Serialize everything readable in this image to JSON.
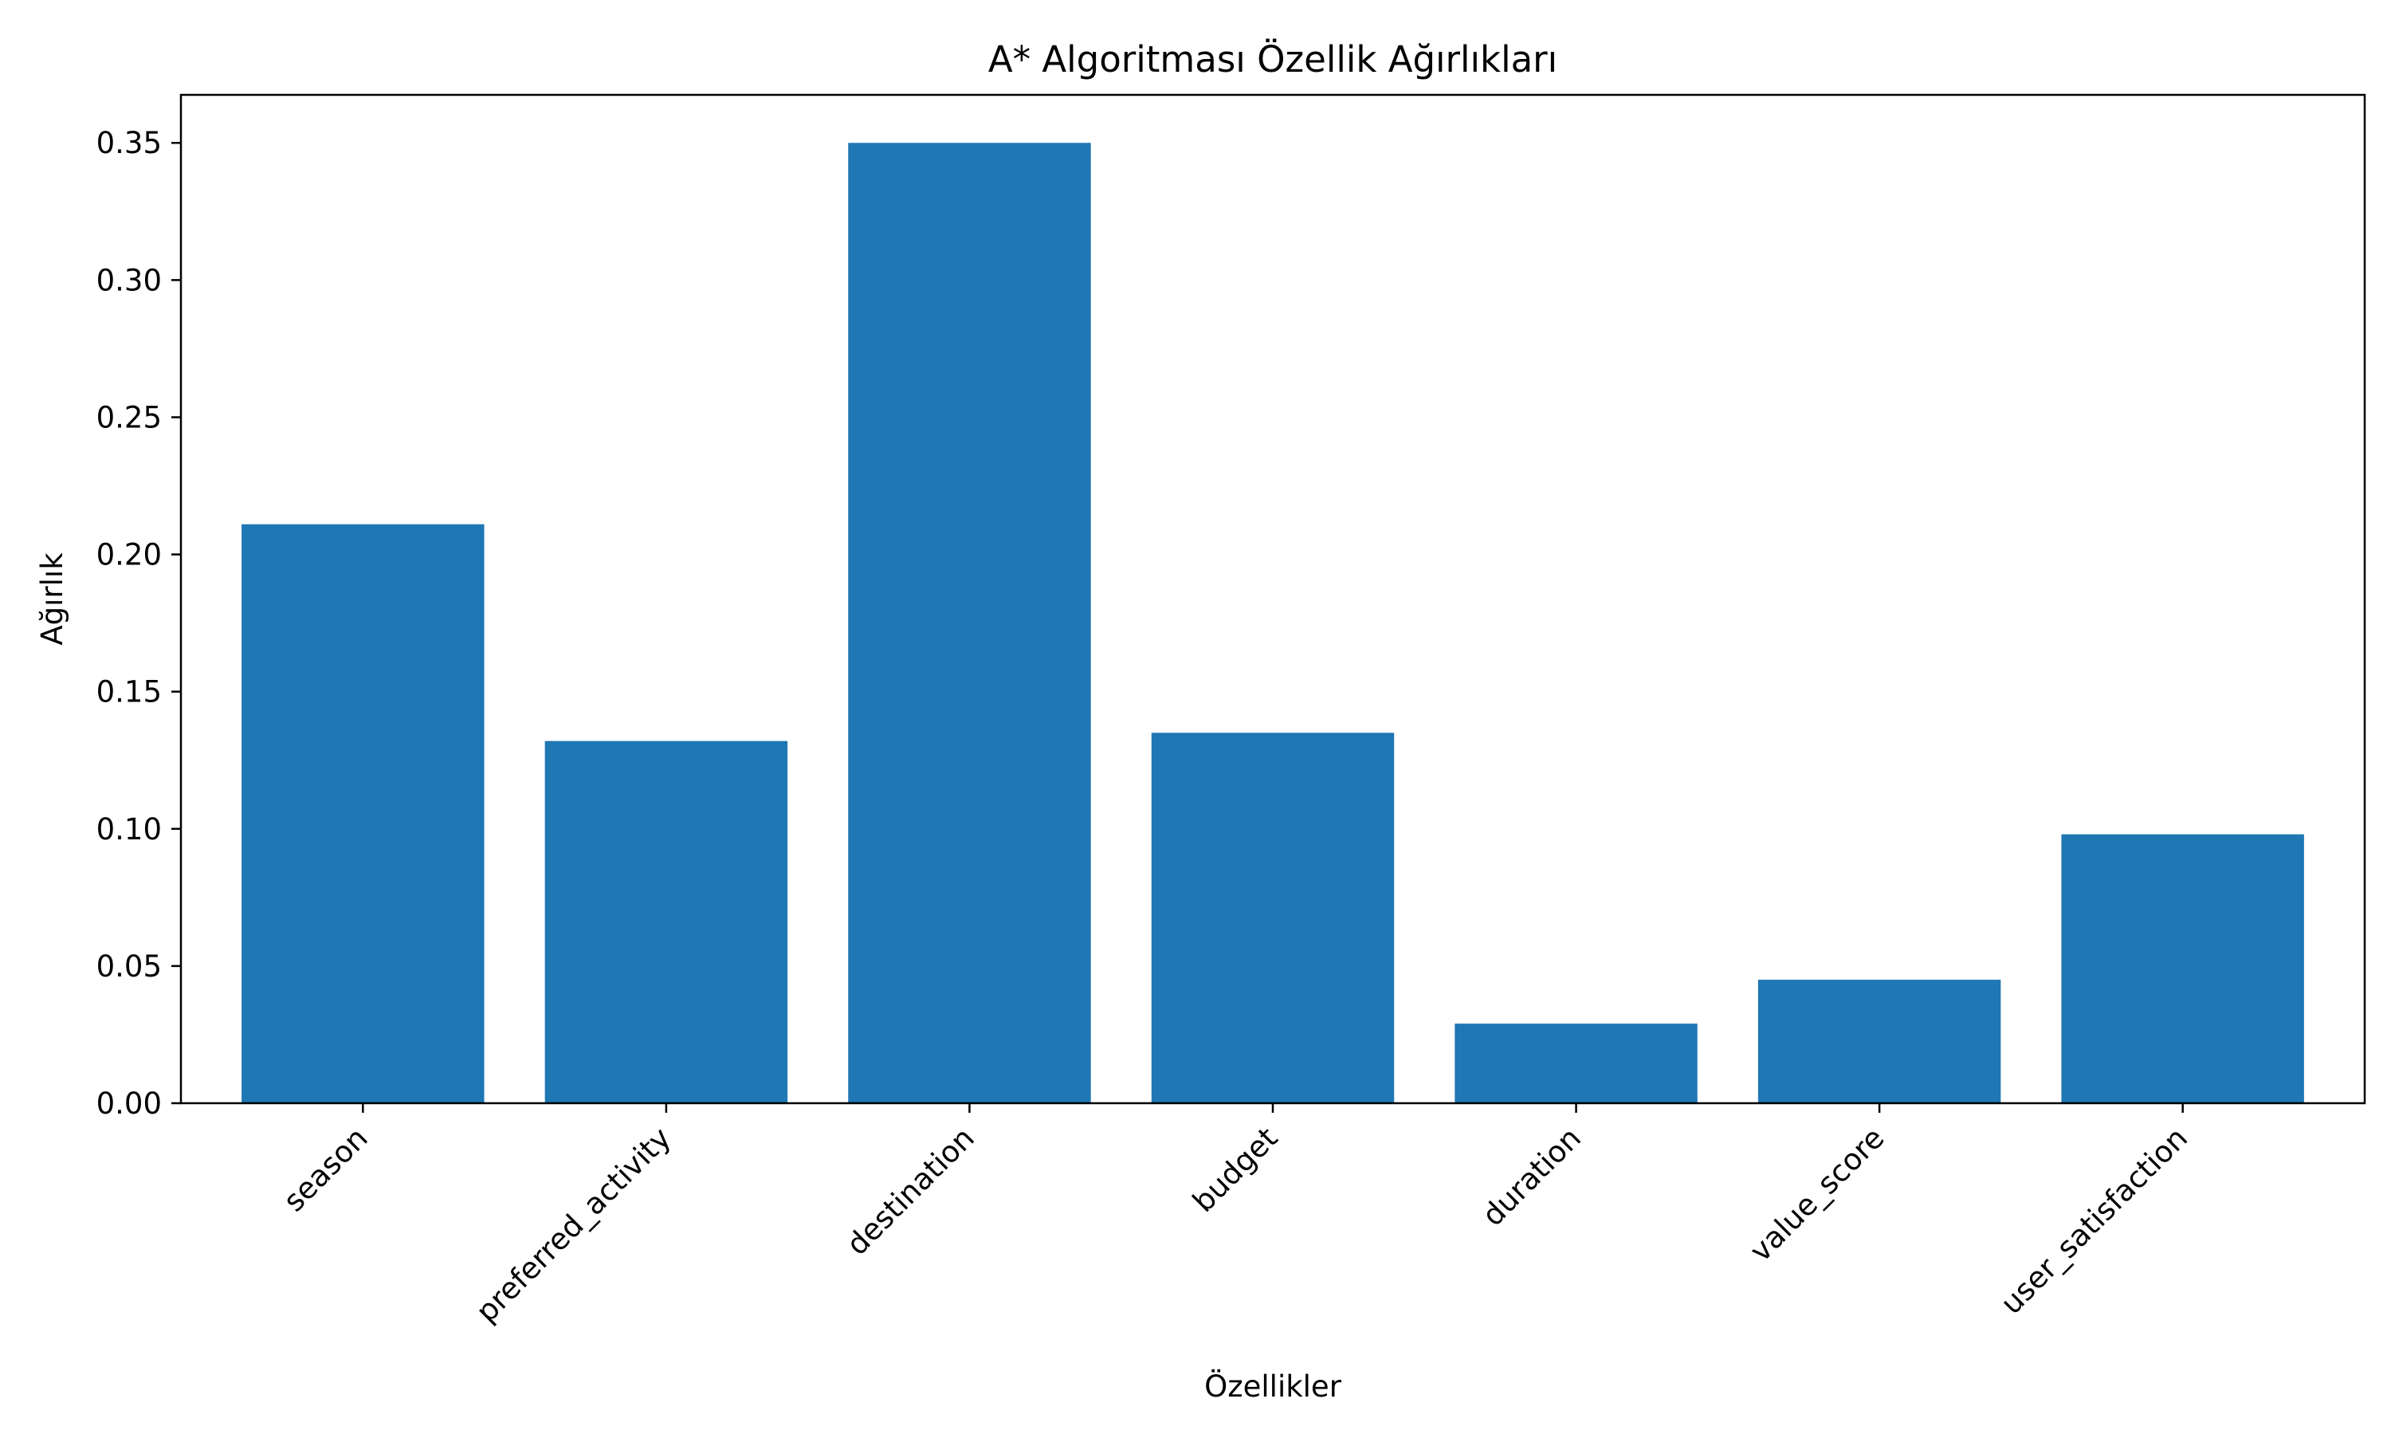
{
  "chart_data": {
    "type": "bar",
    "title": "A* Algoritması Özellik Ağırlıkları",
    "xlabel": "Özellikler",
    "ylabel": "Ağırlık",
    "categories": [
      "season",
      "preferred_activity",
      "destination",
      "budget",
      "duration",
      "value_score",
      "user_satisfaction"
    ],
    "values": [
      0.211,
      0.132,
      0.35,
      0.135,
      0.029,
      0.045,
      0.098
    ],
    "ylim": [
      0,
      0.3675
    ],
    "yticks": [
      0.0,
      0.05,
      0.1,
      0.15,
      0.2,
      0.25,
      0.3,
      0.35
    ],
    "ytick_labels": [
      "0.00",
      "0.05",
      "0.10",
      "0.15",
      "0.20",
      "0.25",
      "0.30",
      "0.35"
    ],
    "xtick_rotation_deg": -45,
    "grid": false,
    "legend": "none",
    "bar_color": "#1f77b4",
    "axis_color": "#000000",
    "background": "#ffffff"
  }
}
